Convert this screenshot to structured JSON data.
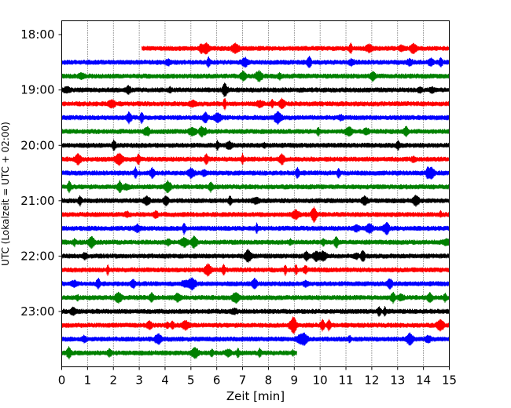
{
  "chart_data": {
    "type": "line",
    "title": "",
    "xlabel": "Zeit  [min]",
    "ylabel": "UTC (Lokalzeit = UTC + 02:00)",
    "xlim": [
      0,
      15
    ],
    "x_ticks": [
      0,
      1,
      2,
      3,
      4,
      5,
      6,
      7,
      8,
      9,
      10,
      11,
      12,
      13,
      14,
      15
    ],
    "y_tick_labels": [
      "18:00",
      "19:00",
      "20:00",
      "21:00",
      "22:00",
      "23:00"
    ],
    "grid": "vertical dotted",
    "trace_interval_minutes": 15,
    "colors": [
      "#ff0000",
      "#0000ff",
      "#008000",
      "#000000"
    ],
    "traces": [
      {
        "start": "18:15",
        "x_start": 3.1,
        "x_end": 15,
        "color": "#ff0000"
      },
      {
        "start": "18:30",
        "x_start": 0,
        "x_end": 15,
        "color": "#0000ff"
      },
      {
        "start": "18:45",
        "x_start": 0,
        "x_end": 15,
        "color": "#008000"
      },
      {
        "start": "19:00",
        "x_start": 0,
        "x_end": 15,
        "color": "#000000"
      },
      {
        "start": "19:15",
        "x_start": 0,
        "x_end": 15,
        "color": "#ff0000"
      },
      {
        "start": "19:30",
        "x_start": 0,
        "x_end": 15,
        "color": "#0000ff"
      },
      {
        "start": "19:45",
        "x_start": 0,
        "x_end": 15,
        "color": "#008000"
      },
      {
        "start": "20:00",
        "x_start": 0,
        "x_end": 15,
        "color": "#000000"
      },
      {
        "start": "20:15",
        "x_start": 0,
        "x_end": 15,
        "color": "#ff0000"
      },
      {
        "start": "20:30",
        "x_start": 0,
        "x_end": 15,
        "color": "#0000ff"
      },
      {
        "start": "20:45",
        "x_start": 0,
        "x_end": 15,
        "color": "#008000"
      },
      {
        "start": "21:00",
        "x_start": 0,
        "x_end": 15,
        "color": "#000000"
      },
      {
        "start": "21:15",
        "x_start": 0,
        "x_end": 15,
        "color": "#ff0000"
      },
      {
        "start": "21:30",
        "x_start": 0,
        "x_end": 15,
        "color": "#0000ff"
      },
      {
        "start": "21:45",
        "x_start": 0,
        "x_end": 15,
        "color": "#008000"
      },
      {
        "start": "22:00",
        "x_start": 0,
        "x_end": 15,
        "color": "#000000"
      },
      {
        "start": "22:15",
        "x_start": 0,
        "x_end": 15,
        "color": "#ff0000"
      },
      {
        "start": "22:30",
        "x_start": 0,
        "x_end": 15,
        "color": "#0000ff"
      },
      {
        "start": "22:45",
        "x_start": 0,
        "x_end": 15,
        "color": "#008000"
      },
      {
        "start": "23:00",
        "x_start": 0,
        "x_end": 15,
        "color": "#000000"
      },
      {
        "start": "23:15",
        "x_start": 0,
        "x_end": 15,
        "color": "#ff0000"
      },
      {
        "start": "23:30",
        "x_start": 0,
        "x_end": 15,
        "color": "#0000ff"
      },
      {
        "start": "23:45",
        "x_start": 0,
        "x_end": 9.1,
        "color": "#008000"
      }
    ]
  }
}
